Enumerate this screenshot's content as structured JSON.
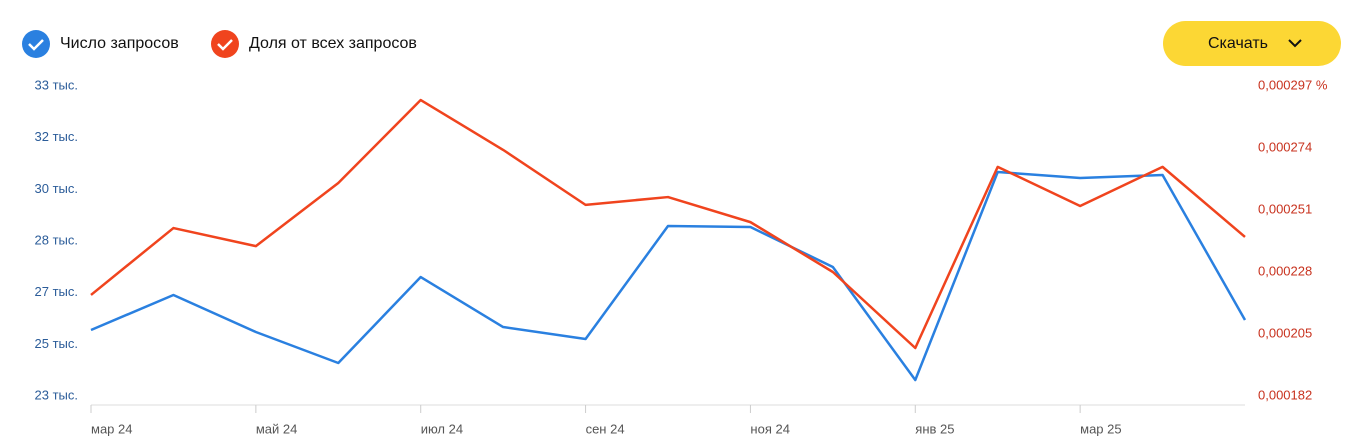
{
  "chart_data": {
    "type": "line",
    "categories": [
      "мар 24",
      null,
      "май 24",
      null,
      "июл 24",
      null,
      "сен 24",
      null,
      "ноя 24",
      null,
      "янв 25",
      null,
      "мар 25",
      null,
      null
    ],
    "series": [
      {
        "name": "Число запросов",
        "color": "#2a80e0",
        "axis": "y",
        "values": [
          25372,
          26523,
          25306,
          24286,
          27115,
          25470,
          25075,
          28794,
          28761,
          27445,
          23726,
          30570,
          30373,
          30472,
          25701
        ]
      },
      {
        "name": "Доля от всех запросов",
        "color": "#f0441e",
        "axis": "y2",
        "values": [
          0.0002195,
          0.0002443,
          0.0002376,
          0.000261,
          0.0002918,
          0.0002733,
          0.0002529,
          0.0002558,
          0.0002465,
          0.000228,
          0.0001998,
          0.000267,
          0.0002525,
          0.000267,
          0.000241
        ]
      }
    ],
    "ylim": [
      23200,
      33400
    ],
    "yticks": [
      {
        "value": 23200,
        "label": "23 тыс."
      },
      {
        "value": 24900,
        "label": "25 тыс."
      },
      {
        "value": 26600,
        "label": "27 тыс."
      },
      {
        "value": 28300,
        "label": "28 тыс."
      },
      {
        "value": 30000,
        "label": "30 тыс."
      },
      {
        "value": 31700,
        "label": "32 тыс."
      },
      {
        "value": 33400,
        "label": "33 тыс."
      }
    ],
    "y2lim": [
      0.000182,
      0.000297
    ],
    "y2ticks": [
      {
        "value": 0.000182,
        "label": "0,000182"
      },
      {
        "value": 0.000205,
        "label": "0,000205"
      },
      {
        "value": 0.000228,
        "label": "0,000228"
      },
      {
        "value": 0.000251,
        "label": "0,000251"
      },
      {
        "value": 0.000274,
        "label": "0,000274"
      },
      {
        "value": 0.000297,
        "label": "0,000297 %"
      }
    ],
    "button": "Скачать"
  }
}
